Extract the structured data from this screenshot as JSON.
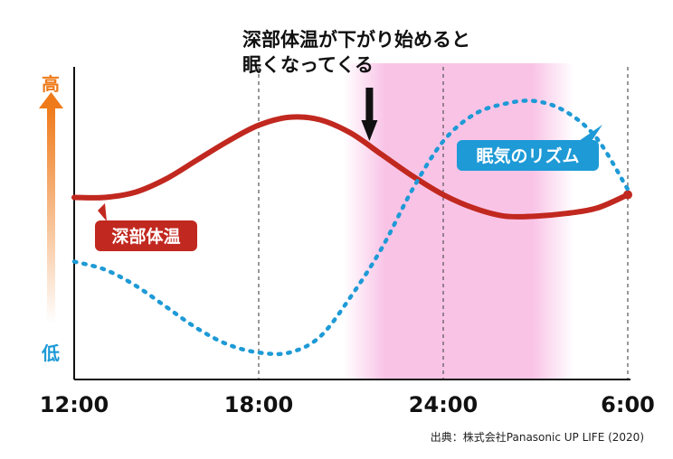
{
  "chart_data": {
    "type": "line",
    "title": "深部体温が下がり始めると眠くなってくる",
    "title_lines": [
      "深部体温が下がり始めると",
      "眠くなってくる"
    ],
    "x_ticks": [
      "12:00",
      "18:00",
      "24:00",
      "6:00"
    ],
    "x_hours": [
      12,
      18,
      24,
      30
    ],
    "xlim": [
      12,
      30
    ],
    "ylim": [
      0,
      100
    ],
    "y_high_label": "高",
    "y_low_label": "低",
    "grid": "vertical dashed lines at 18:00, 24:00, 6:00",
    "highlight": {
      "from_hour": 21.5,
      "to_hour": 27.5,
      "color": "#f9c3e6",
      "meaning": "sleep-onset zone"
    },
    "arrow_at_hour": 21.6,
    "series": [
      {
        "name": "深部体温",
        "color": "#c1281f",
        "style": "solid",
        "points": [
          [
            12,
            62
          ],
          [
            13,
            62
          ],
          [
            14,
            64
          ],
          [
            15,
            69
          ],
          [
            16,
            76
          ],
          [
            17,
            83
          ],
          [
            18,
            89
          ],
          [
            19,
            92
          ],
          [
            20,
            91
          ],
          [
            21,
            86
          ],
          [
            22,
            78
          ],
          [
            23,
            70
          ],
          [
            24,
            63
          ],
          [
            25,
            58
          ],
          [
            26,
            55
          ],
          [
            27,
            55
          ],
          [
            28,
            56
          ],
          [
            29,
            58
          ],
          [
            30,
            63
          ]
        ]
      },
      {
        "name": "眠気のリズム",
        "color": "#1e9ad6",
        "style": "dotted",
        "points": [
          [
            12,
            38
          ],
          [
            13,
            35
          ],
          [
            14,
            29
          ],
          [
            15,
            21
          ],
          [
            16,
            13
          ],
          [
            17,
            7
          ],
          [
            18,
            4
          ],
          [
            19,
            4
          ],
          [
            20,
            10
          ],
          [
            21,
            25
          ],
          [
            22,
            43
          ],
          [
            23,
            65
          ],
          [
            24,
            83
          ],
          [
            25,
            93
          ],
          [
            26,
            97
          ],
          [
            27,
            98
          ],
          [
            28,
            94
          ],
          [
            29,
            84
          ],
          [
            30,
            65
          ]
        ]
      }
    ]
  },
  "source": "出典：株式会社Panasonic UP LIFE (2020)"
}
